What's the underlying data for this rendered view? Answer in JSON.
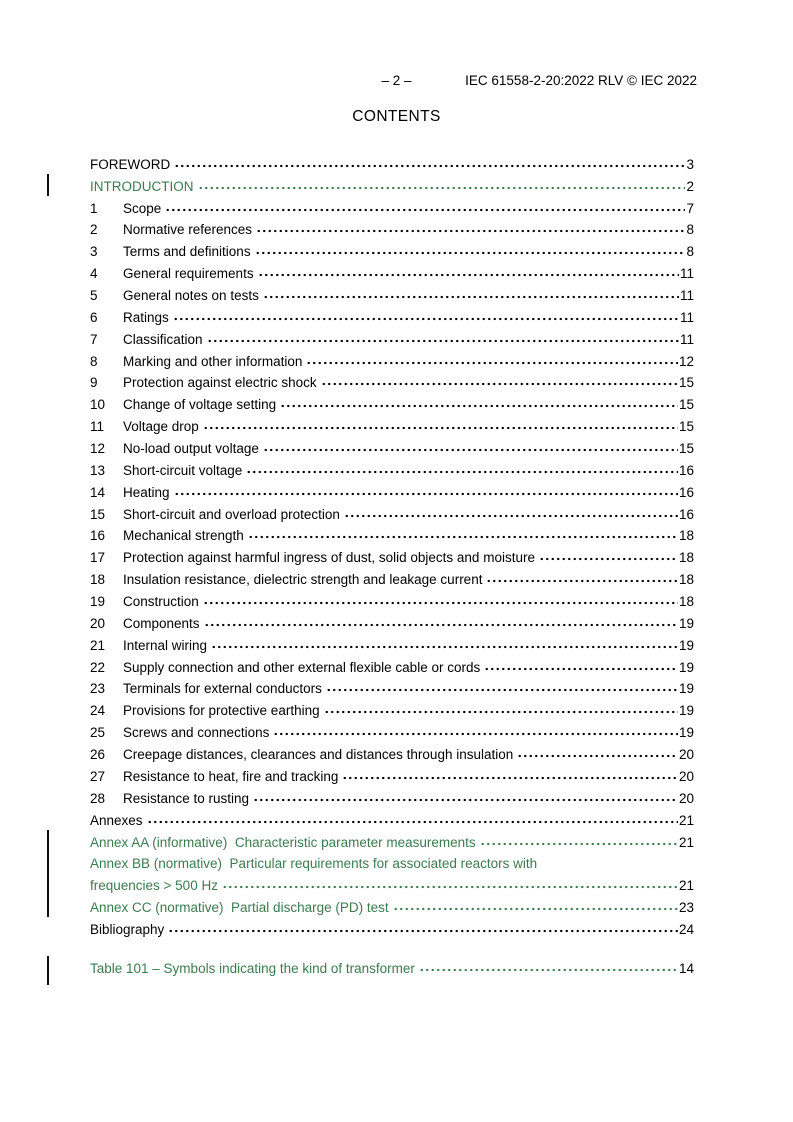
{
  "header": {
    "page_marker": "– 2 –",
    "doc_ref": "IEC 61558-2-20:2022 RLV © IEC 2022"
  },
  "title": "CONTENTS",
  "colors": {
    "added_text_green": "#3c7b4e",
    "text_black": "#000000",
    "change_bar": "#111111"
  },
  "toc": {
    "entries": [
      {
        "num": "",
        "label": "FOREWORD",
        "page": "3",
        "green": false,
        "changebar": false
      },
      {
        "num": "",
        "label": "INTRODUCTION",
        "page": "2",
        "green": true,
        "changebar": true
      },
      {
        "num": "1",
        "label": "Scope",
        "page": "7",
        "green": false,
        "changebar": false
      },
      {
        "num": "2",
        "label": "Normative references",
        "page": "8",
        "green": false,
        "changebar": false
      },
      {
        "num": "3",
        "label": "Terms and definitions",
        "page": "8",
        "green": false,
        "changebar": false
      },
      {
        "num": "4",
        "label": "General requirements",
        "page": "11",
        "green": false,
        "changebar": false
      },
      {
        "num": "5",
        "label": "General notes on tests",
        "page": "11",
        "green": false,
        "changebar": false
      },
      {
        "num": "6",
        "label": "Ratings",
        "page": "11",
        "green": false,
        "changebar": false
      },
      {
        "num": "7",
        "label": "Classification",
        "page": "11",
        "green": false,
        "changebar": false
      },
      {
        "num": "8",
        "label": "Marking and other information",
        "page": "12",
        "green": false,
        "changebar": false
      },
      {
        "num": "9",
        "label": "Protection against electric shock",
        "page": "15",
        "green": false,
        "changebar": false
      },
      {
        "num": "10",
        "label": "Change of voltage setting",
        "page": "15",
        "green": false,
        "changebar": false
      },
      {
        "num": "11",
        "label": "Voltage drop",
        "page": "15",
        "green": false,
        "changebar": false
      },
      {
        "num": "12",
        "label": "No-load output voltage",
        "page": "15",
        "green": false,
        "changebar": false
      },
      {
        "num": "13",
        "label": "Short-circuit voltage",
        "page": "16",
        "green": false,
        "changebar": false
      },
      {
        "num": "14",
        "label": "Heating",
        "page": "16",
        "green": false,
        "changebar": false
      },
      {
        "num": "15",
        "label": "Short-circuit and overload protection",
        "page": "16",
        "green": false,
        "changebar": false
      },
      {
        "num": "16",
        "label": "Mechanical strength",
        "page": "18",
        "green": false,
        "changebar": false
      },
      {
        "num": "17",
        "label": "Protection against harmful ingress of dust, solid objects and moisture",
        "page": "18",
        "green": false,
        "changebar": false
      },
      {
        "num": "18",
        "label": "Insulation resistance, dielectric strength and leakage current",
        "page": "18",
        "green": false,
        "changebar": false
      },
      {
        "num": "19",
        "label": "Construction",
        "page": "18",
        "green": false,
        "changebar": false
      },
      {
        "num": "20",
        "label": "Components",
        "page": "19",
        "green": false,
        "changebar": false
      },
      {
        "num": "21",
        "label": "Internal wiring",
        "page": "19",
        "green": false,
        "changebar": false
      },
      {
        "num": "22",
        "label": "Supply connection and other external flexible cable or cords",
        "page": "19",
        "green": false,
        "changebar": false
      },
      {
        "num": "23",
        "label": "Terminals for external conductors",
        "page": "19",
        "green": false,
        "changebar": false
      },
      {
        "num": "24",
        "label": "Provisions for protective earthing",
        "page": "19",
        "green": false,
        "changebar": false
      },
      {
        "num": "25",
        "label": "Screws and connections",
        "page": "19",
        "green": false,
        "changebar": false
      },
      {
        "num": "26",
        "label": "Creepage distances, clearances and distances through insulation",
        "page": "20",
        "green": false,
        "changebar": false
      },
      {
        "num": "27",
        "label": "Resistance to heat, fire and tracking",
        "page": "20",
        "green": false,
        "changebar": false
      },
      {
        "num": "28",
        "label": "Resistance to rusting",
        "page": "20",
        "green": false,
        "changebar": false
      },
      {
        "num": "",
        "label": "Annexes",
        "page": "21",
        "green": false,
        "changebar": false
      },
      {
        "num": "",
        "label": "Annex AA (informative)  Characteristic parameter measurements",
        "page": "21",
        "green": true,
        "changebar": true
      },
      {
        "num": "",
        "label": "Annex BB (normative)  Particular requirements for associated reactors with",
        "label2": "frequencies > 500 Hz",
        "page": "21",
        "green": true,
        "changebar": true
      },
      {
        "num": "",
        "label": "Annex CC (normative)  Partial discharge (PD) test",
        "page": "23",
        "green": true,
        "changebar": true
      },
      {
        "num": "",
        "label": "Bibliography",
        "page": "24",
        "green": false,
        "changebar": false
      }
    ]
  },
  "tables": {
    "entries": [
      {
        "num": "",
        "label": "Table 101 – Symbols indicating the kind of transformer",
        "page": "14",
        "green": true,
        "changebar": true,
        "tallbar": true
      }
    ]
  }
}
